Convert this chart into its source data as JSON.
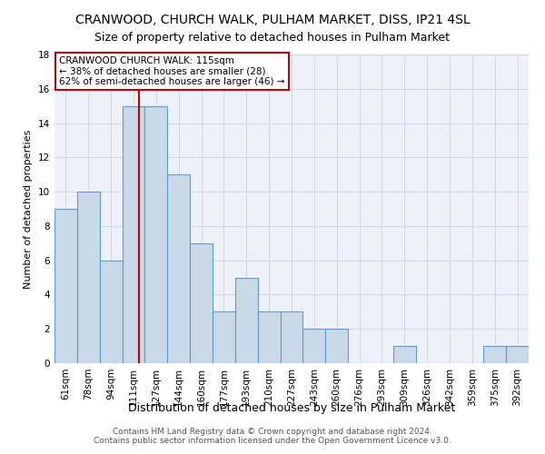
{
  "title": "CRANWOOD, CHURCH WALK, PULHAM MARKET, DISS, IP21 4SL",
  "subtitle": "Size of property relative to detached houses in Pulham Market",
  "xlabel": "Distribution of detached houses by size in Pulham Market",
  "ylabel": "Number of detached properties",
  "categories": [
    "61sqm",
    "78sqm",
    "94sqm",
    "111sqm",
    "127sqm",
    "144sqm",
    "160sqm",
    "177sqm",
    "193sqm",
    "210sqm",
    "227sqm",
    "243sqm",
    "260sqm",
    "276sqm",
    "293sqm",
    "309sqm",
    "326sqm",
    "342sqm",
    "359sqm",
    "375sqm",
    "392sqm"
  ],
  "values": [
    9,
    10,
    6,
    15,
    15,
    11,
    7,
    3,
    5,
    3,
    3,
    2,
    2,
    0,
    0,
    1,
    0,
    0,
    0,
    1,
    1
  ],
  "bar_color": "#c9d9e8",
  "bar_edgecolor": "#5b9bd5",
  "bar_linewidth": 0.8,
  "vline_color": "#c00000",
  "vline_linewidth": 1.5,
  "vline_pos": 3.24,
  "annotation_text": "CRANWOOD CHURCH WALK: 115sqm\n← 38% of detached houses are smaller (28)\n62% of semi-detached houses are larger (46) →",
  "annotation_box_edgecolor": "#c00000",
  "annotation_box_facecolor": "white",
  "ylim": [
    0,
    18
  ],
  "yticks": [
    0,
    2,
    4,
    6,
    8,
    10,
    12,
    14,
    16,
    18
  ],
  "grid_color": "#d0d8e8",
  "background_color": "#eef2f8",
  "footer": "Contains HM Land Registry data © Crown copyright and database right 2024.\nContains public sector information licensed under the Open Government Licence v3.0.",
  "title_fontsize": 10,
  "subtitle_fontsize": 9,
  "xlabel_fontsize": 9,
  "ylabel_fontsize": 8,
  "tick_fontsize": 7.5,
  "annotation_fontsize": 7.5,
  "footer_fontsize": 6.5
}
